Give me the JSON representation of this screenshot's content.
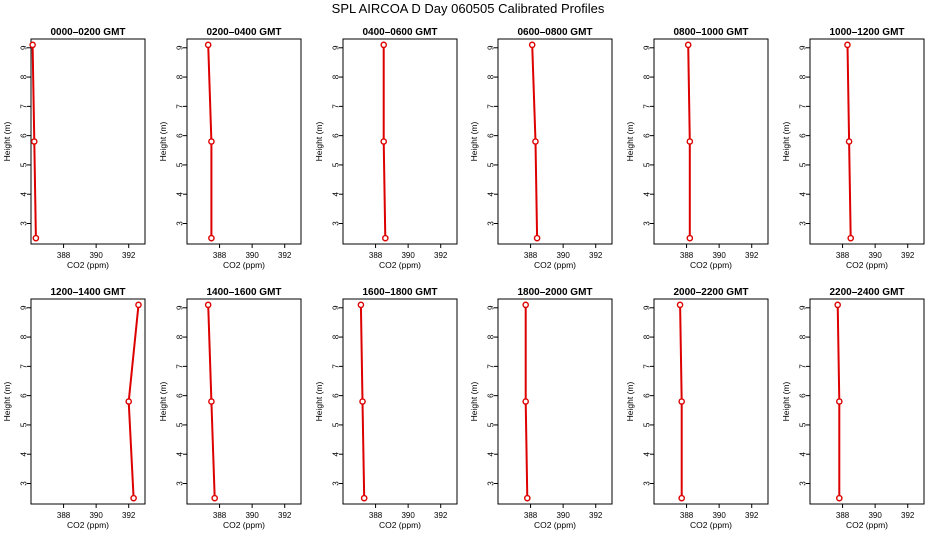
{
  "figure": {
    "title": "SPL AIRCOA D  Day 060505  Calibrated Profiles"
  },
  "style": {
    "line_color": "#dd0000",
    "marker_color": "#dd0000",
    "axis_color": "#000000"
  },
  "chart_data": [
    {
      "type": "line",
      "title": "0000–0200 GMT",
      "xlabel": "CO2 (ppm)",
      "ylabel": "Height (m)",
      "xlim": [
        386,
        393
      ],
      "ylim": [
        2.3,
        9.3
      ],
      "xticks": [
        388,
        390,
        392
      ],
      "yticks": [
        3,
        4,
        5,
        6,
        7,
        8,
        9
      ],
      "series": [
        {
          "x": [
            386.1,
            386.2,
            386.3
          ],
          "y": [
            9.1,
            5.8,
            2.5
          ]
        }
      ]
    },
    {
      "type": "line",
      "title": "0200–0400 GMT",
      "xlabel": "CO2 (ppm)",
      "ylabel": "Height (m)",
      "xlim": [
        386,
        393
      ],
      "ylim": [
        2.3,
        9.3
      ],
      "xticks": [
        388,
        390,
        392
      ],
      "yticks": [
        3,
        4,
        5,
        6,
        7,
        8,
        9
      ],
      "series": [
        {
          "x": [
            387.3,
            387.5,
            387.5
          ],
          "y": [
            9.1,
            5.8,
            2.5
          ]
        }
      ]
    },
    {
      "type": "line",
      "title": "0400–0600 GMT",
      "xlabel": "CO2 (ppm)",
      "ylabel": "Height (m)",
      "xlim": [
        386,
        393
      ],
      "ylim": [
        2.3,
        9.3
      ],
      "xticks": [
        388,
        390,
        392
      ],
      "yticks": [
        3,
        4,
        5,
        6,
        7,
        8,
        9
      ],
      "series": [
        {
          "x": [
            388.5,
            388.5,
            388.6
          ],
          "y": [
            9.1,
            5.8,
            2.5
          ]
        }
      ]
    },
    {
      "type": "line",
      "title": "0600–0800 GMT",
      "xlabel": "CO2 (ppm)",
      "ylabel": "Height (m)",
      "xlim": [
        386,
        393
      ],
      "ylim": [
        2.3,
        9.3
      ],
      "xticks": [
        388,
        390,
        392
      ],
      "yticks": [
        3,
        4,
        5,
        6,
        7,
        8,
        9
      ],
      "series": [
        {
          "x": [
            388.1,
            388.3,
            388.4
          ],
          "y": [
            9.1,
            5.8,
            2.5
          ]
        }
      ]
    },
    {
      "type": "line",
      "title": "0800–1000 GMT",
      "xlabel": "CO2 (ppm)",
      "ylabel": "Height (m)",
      "xlim": [
        386,
        393
      ],
      "ylim": [
        2.3,
        9.3
      ],
      "xticks": [
        388,
        390,
        392
      ],
      "yticks": [
        3,
        4,
        5,
        6,
        7,
        8,
        9
      ],
      "series": [
        {
          "x": [
            388.1,
            388.2,
            388.2
          ],
          "y": [
            9.1,
            5.8,
            2.5
          ]
        }
      ]
    },
    {
      "type": "line",
      "title": "1000–1200 GMT",
      "xlabel": "CO2 (ppm)",
      "ylabel": "Height (m)",
      "xlim": [
        386,
        393
      ],
      "ylim": [
        2.3,
        9.3
      ],
      "xticks": [
        388,
        390,
        392
      ],
      "yticks": [
        3,
        4,
        5,
        6,
        7,
        8,
        9
      ],
      "series": [
        {
          "x": [
            388.3,
            388.4,
            388.5
          ],
          "y": [
            9.1,
            5.8,
            2.5
          ]
        }
      ]
    },
    {
      "type": "line",
      "title": "1200–1400 GMT",
      "xlabel": "CO2 (ppm)",
      "ylabel": "Height (m)",
      "xlim": [
        386,
        393
      ],
      "ylim": [
        2.3,
        9.3
      ],
      "xticks": [
        388,
        390,
        392
      ],
      "yticks": [
        3,
        4,
        5,
        6,
        7,
        8,
        9
      ],
      "series": [
        {
          "x": [
            392.6,
            392.0,
            392.3
          ],
          "y": [
            9.1,
            5.8,
            2.5
          ]
        }
      ]
    },
    {
      "type": "line",
      "title": "1400–1600 GMT",
      "xlabel": "CO2 (ppm)",
      "ylabel": "Height (m)",
      "xlim": [
        386,
        393
      ],
      "ylim": [
        2.3,
        9.3
      ],
      "xticks": [
        388,
        390,
        392
      ],
      "yticks": [
        3,
        4,
        5,
        6,
        7,
        8,
        9
      ],
      "series": [
        {
          "x": [
            387.3,
            387.5,
            387.7
          ],
          "y": [
            9.1,
            5.8,
            2.5
          ]
        }
      ]
    },
    {
      "type": "line",
      "title": "1600–1800 GMT",
      "xlabel": "CO2 (ppm)",
      "ylabel": "Height (m)",
      "xlim": [
        386,
        393
      ],
      "ylim": [
        2.3,
        9.3
      ],
      "xticks": [
        388,
        390,
        392
      ],
      "yticks": [
        3,
        4,
        5,
        6,
        7,
        8,
        9
      ],
      "series": [
        {
          "x": [
            387.1,
            387.2,
            387.3
          ],
          "y": [
            9.1,
            5.8,
            2.5
          ]
        }
      ]
    },
    {
      "type": "line",
      "title": "1800–2000 GMT",
      "xlabel": "CO2 (ppm)",
      "ylabel": "Height (m)",
      "xlim": [
        386,
        393
      ],
      "ylim": [
        2.3,
        9.3
      ],
      "xticks": [
        388,
        390,
        392
      ],
      "yticks": [
        3,
        4,
        5,
        6,
        7,
        8,
        9
      ],
      "series": [
        {
          "x": [
            387.7,
            387.7,
            387.8
          ],
          "y": [
            9.1,
            5.8,
            2.5
          ]
        }
      ]
    },
    {
      "type": "line",
      "title": "2000–2200 GMT",
      "xlabel": "CO2 (ppm)",
      "ylabel": "Height (m)",
      "xlim": [
        386,
        393
      ],
      "ylim": [
        2.3,
        9.3
      ],
      "xticks": [
        388,
        390,
        392
      ],
      "yticks": [
        3,
        4,
        5,
        6,
        7,
        8,
        9
      ],
      "series": [
        {
          "x": [
            387.6,
            387.7,
            387.7
          ],
          "y": [
            9.1,
            5.8,
            2.5
          ]
        }
      ]
    },
    {
      "type": "line",
      "title": "2200–2400 GMT",
      "xlabel": "CO2 (ppm)",
      "ylabel": "Height (m)",
      "xlim": [
        386,
        393
      ],
      "ylim": [
        2.3,
        9.3
      ],
      "xticks": [
        388,
        390,
        392
      ],
      "yticks": [
        3,
        4,
        5,
        6,
        7,
        8,
        9
      ],
      "series": [
        {
          "x": [
            387.7,
            387.8,
            387.8
          ],
          "y": [
            9.1,
            5.8,
            2.5
          ]
        }
      ]
    }
  ]
}
